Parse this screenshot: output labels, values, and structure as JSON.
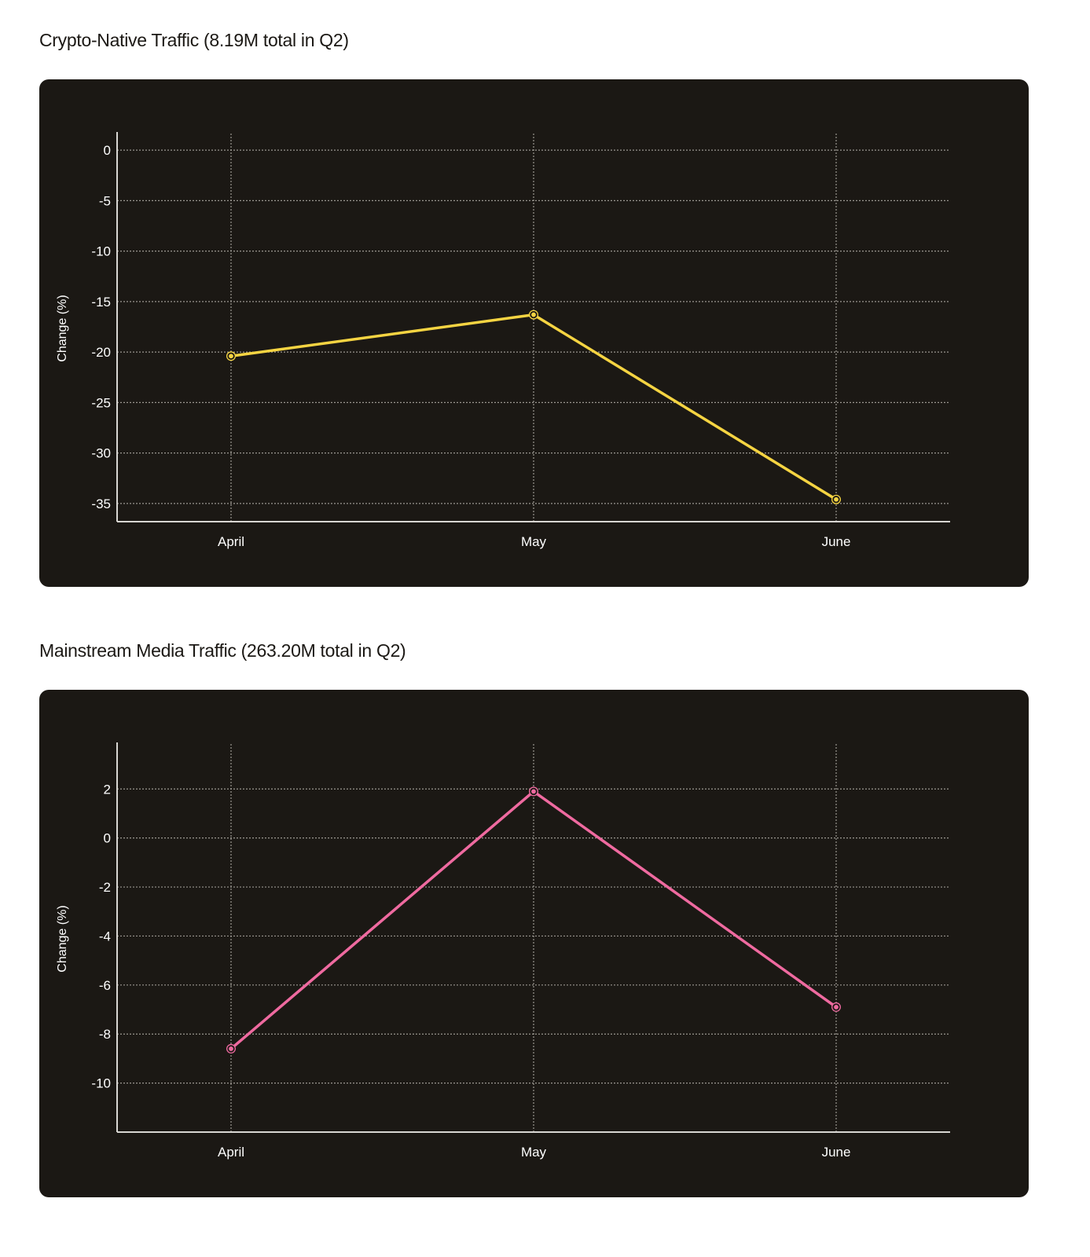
{
  "chart_data": [
    {
      "type": "line",
      "title": "Crypto-Native Traffic (8.19M total in Q2)",
      "xlabel": "",
      "ylabel": "Change (%)",
      "categories": [
        "April",
        "May",
        "June"
      ],
      "series": [
        {
          "values": [
            -20.4,
            -16.3,
            -34.6
          ],
          "color": "#f5d442"
        }
      ],
      "yticks": [
        0,
        -5,
        -10,
        -15,
        -20,
        -25,
        -30,
        -35
      ],
      "ylim": [
        -36.8,
        1.8
      ],
      "grid": true,
      "background": "#1b1814"
    },
    {
      "type": "line",
      "title": "Mainstream Media Traffic (263.20M total in Q2)",
      "xlabel": "",
      "ylabel": "Change (%)",
      "categories": [
        "April",
        "May",
        "June"
      ],
      "series": [
        {
          "values": [
            -8.6,
            1.9,
            -6.9
          ],
          "color": "#ef6aa0"
        }
      ],
      "yticks": [
        2,
        0,
        -2,
        -4,
        -6,
        -8,
        -10
      ],
      "ylim": [
        -12,
        3.9
      ],
      "grid": true,
      "background": "#1b1814"
    }
  ]
}
